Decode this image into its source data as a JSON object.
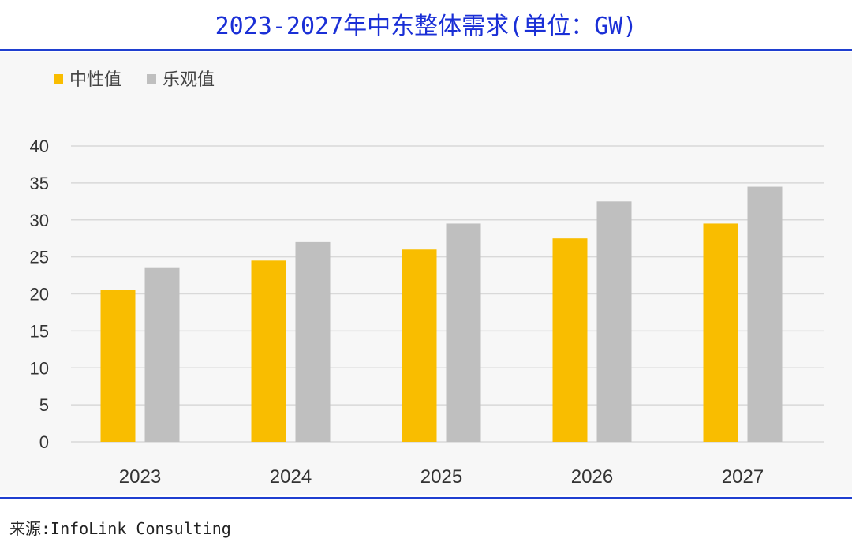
{
  "title": "2023-2027年中东整体需求(单位：GW)",
  "source": "来源:InfoLink Consulting",
  "colors": {
    "neutral": "#f9bd00",
    "optimistic": "#bfbfbf",
    "title": "#1a2fd6",
    "rule": "#1f3fd0"
  },
  "chart_data": {
    "type": "bar",
    "title": "2023-2027年中东整体需求(单位：GW)",
    "xlabel": "",
    "ylabel": "",
    "categories": [
      "2023",
      "2024",
      "2025",
      "2026",
      "2027"
    ],
    "series": [
      {
        "name": "中性值",
        "color": "#f9bd00",
        "values": [
          20.5,
          24.5,
          26,
          27.5,
          29.5
        ]
      },
      {
        "name": "乐观值",
        "color": "#bfbfbf",
        "values": [
          23.5,
          27,
          29.5,
          32.5,
          34.5
        ]
      }
    ],
    "ylim": [
      0,
      40
    ],
    "yticks": [
      "0",
      "5",
      "10",
      "15",
      "20",
      "25",
      "30",
      "35",
      "40"
    ],
    "grid": true,
    "legend": "top-left"
  }
}
